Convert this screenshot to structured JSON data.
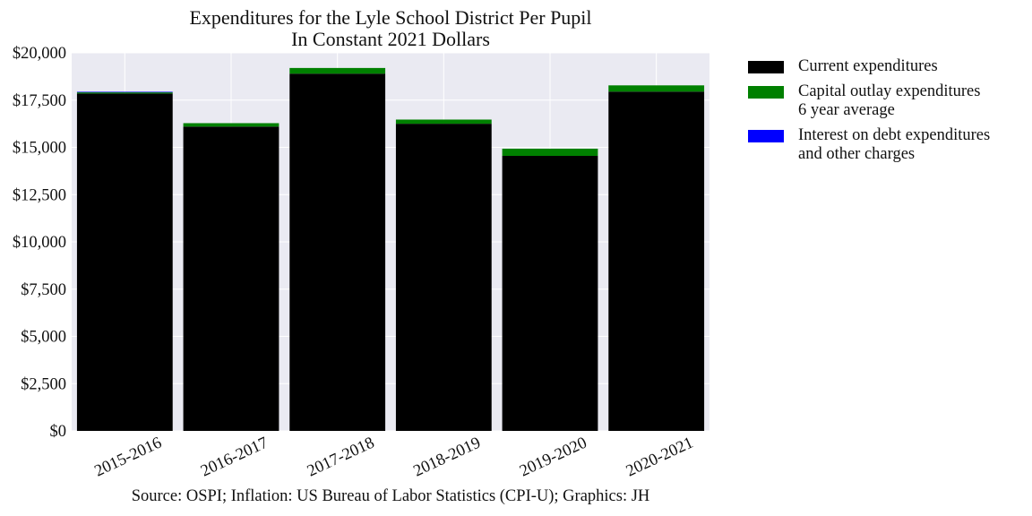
{
  "chart_data": {
    "type": "bar",
    "stacked": true,
    "title": [
      "Expenditures for the Lyle School District Per Pupil",
      "In Constant 2021 Dollars"
    ],
    "categories": [
      "2015-2016",
      "2016-2017",
      "2017-2018",
      "2018-2019",
      "2019-2020",
      "2020-2021"
    ],
    "series": [
      {
        "name": [
          "Current expenditures"
        ],
        "color": "#000000",
        "values": [
          17850,
          16100,
          18900,
          16250,
          14550,
          17950
        ]
      },
      {
        "name": [
          "Capital outlay expenditures",
          "6 year average"
        ],
        "color": "#008000",
        "values": [
          60,
          180,
          300,
          220,
          380,
          330
        ]
      },
      {
        "name": [
          "Interest on debt expenditures",
          "and other charges"
        ],
        "color": "#0000ff",
        "values": [
          30,
          0,
          0,
          0,
          0,
          0
        ]
      }
    ],
    "ylim": [
      0,
      20000
    ],
    "yticks": [
      0,
      2500,
      5000,
      7500,
      10000,
      12500,
      15000,
      17500,
      20000
    ],
    "ytick_labels": [
      "$0",
      "$2,500",
      "$5,000",
      "$7,500",
      "$10,000",
      "$12,500",
      "$15,000",
      "$17,500",
      "$20,000"
    ],
    "grid": true,
    "legend_position": "outside-right",
    "background": "#eaeaf2"
  },
  "source_note": "Source: OSPI; Inflation: US Bureau of Labor Statistics (CPI-U); Graphics: JH"
}
